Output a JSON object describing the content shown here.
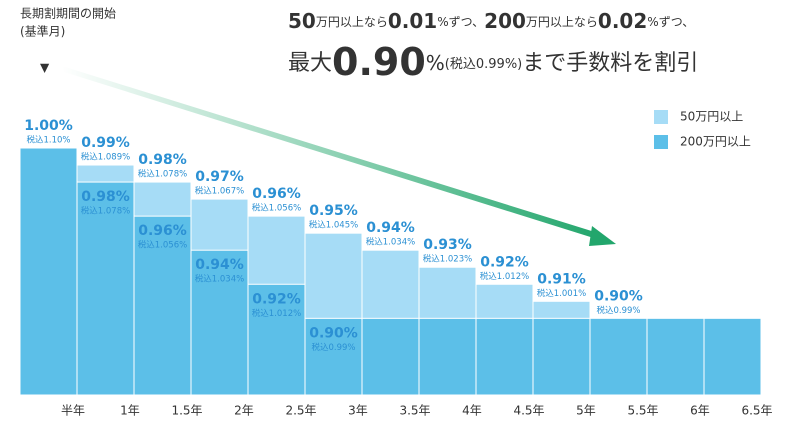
{
  "chart_data": {
    "type": "step-bar",
    "note_top_left": [
      "長期割期間の開始",
      "(基準月)"
    ],
    "marker": "▼",
    "headline": {
      "line1": [
        "50",
        "万円以上なら",
        "0.01",
        "%",
        "ずつ、",
        "200",
        "万円以上なら",
        "0.02",
        "%",
        "ずつ、"
      ],
      "line2": [
        "最大",
        "0.90",
        "%",
        "(税込0.99%)",
        "まで手数料を割引"
      ]
    },
    "categories": [
      "半年",
      "1年",
      "1.5年",
      "2年",
      "2.5年",
      "3年",
      "3.5年",
      "4年",
      "4.5年",
      "5年",
      "5.5年",
      "6年",
      "6.5年"
    ],
    "ylim": [
      0.855,
      1.0
    ],
    "legend": "top-right",
    "series": [
      {
        "name": "50万円以上",
        "color": "#a6dcf6",
        "values": [
          1.0,
          0.99,
          0.98,
          0.97,
          0.96,
          0.95,
          0.94,
          0.93,
          0.92,
          0.91,
          0.9,
          0.9,
          0.9
        ],
        "value_labels": [
          null,
          "0.99%",
          "0.98%",
          "0.97%",
          "0.96%",
          "0.95%",
          "0.94%",
          "0.93%",
          "0.92%",
          "0.91%",
          "0.90%",
          null,
          null
        ],
        "tax_labels": [
          null,
          "税込1.089%",
          "税込1.078%",
          "税込1.067%",
          "税込1.056%",
          "税込1.045%",
          "税込1.034%",
          "税込1.023%",
          "税込1.012%",
          "税込1.001%",
          "税込0.99%",
          null,
          null
        ]
      },
      {
        "name": "200万円以上",
        "color": "#5cbfe8",
        "values": [
          1.0,
          0.98,
          0.96,
          0.94,
          0.92,
          0.9,
          0.9,
          0.9,
          0.9,
          0.9,
          0.9,
          0.9,
          0.9
        ],
        "value_labels": [
          "1.00%",
          "0.98%",
          "0.96%",
          "0.94%",
          "0.92%",
          "0.90%",
          null,
          null,
          null,
          null,
          null,
          null,
          null
        ],
        "tax_labels": [
          "税込1.10%",
          "税込1.078%",
          "税込1.056%",
          "税込1.034%",
          "税込1.012%",
          "税込0.99%",
          null,
          null,
          null,
          null,
          null,
          null,
          null
        ]
      }
    ]
  }
}
